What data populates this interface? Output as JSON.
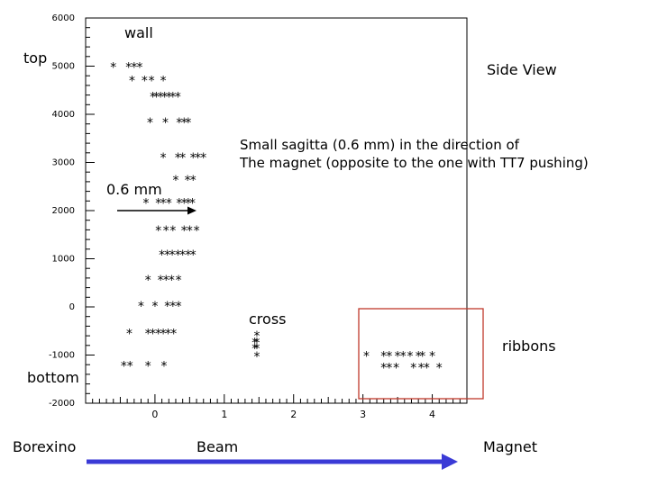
{
  "chart_data": {
    "type": "scatter",
    "title": "",
    "xlabel": "",
    "ylabel": "",
    "xlim": [
      -1,
      4.5
    ],
    "ylim": [
      -2000,
      6000
    ],
    "x_ticks": [
      {
        "value": 0,
        "label": "0"
      },
      {
        "value": 1,
        "label": "1"
      },
      {
        "value": 2,
        "label": "2"
      },
      {
        "value": 3,
        "label": "3"
      },
      {
        "value": 4,
        "label": "4"
      }
    ],
    "y_ticks": [
      {
        "value": 6000,
        "label": "6000"
      },
      {
        "value": 5000,
        "label": "5000"
      },
      {
        "value": 4000,
        "label": "4000"
      },
      {
        "value": 3000,
        "label": "3000"
      },
      {
        "value": 2000,
        "label": "2000"
      },
      {
        "value": 1000,
        "label": "1000"
      },
      {
        "value": 0,
        "label": "0"
      },
      {
        "value": -1000,
        "label": "-1000"
      },
      {
        "value": -2000,
        "label": "-2000"
      }
    ],
    "marker": "*",
    "series": [
      {
        "points": [
          [
            -0.6,
            5000
          ],
          [
            -0.38,
            5000
          ],
          [
            -0.3,
            5000
          ],
          [
            -0.22,
            5000
          ],
          [
            -0.33,
            4720
          ],
          [
            -0.15,
            4720
          ],
          [
            -0.05,
            4720
          ],
          [
            0.12,
            4720
          ],
          [
            -0.03,
            4380
          ],
          [
            0.02,
            4380
          ],
          [
            0.08,
            4380
          ],
          [
            0.14,
            4380
          ],
          [
            0.2,
            4380
          ],
          [
            0.26,
            4380
          ],
          [
            0.33,
            4380
          ],
          [
            -0.07,
            3850
          ],
          [
            0.15,
            3850
          ],
          [
            0.35,
            3850
          ],
          [
            0.42,
            3850
          ],
          [
            0.48,
            3850
          ],
          [
            0.12,
            3120
          ],
          [
            0.33,
            3120
          ],
          [
            0.4,
            3120
          ],
          [
            0.55,
            3120
          ],
          [
            0.62,
            3120
          ],
          [
            0.7,
            3120
          ],
          [
            0.3,
            2650
          ],
          [
            0.47,
            2650
          ],
          [
            0.55,
            2650
          ],
          [
            -0.13,
            2180
          ],
          [
            0.05,
            2180
          ],
          [
            0.12,
            2180
          ],
          [
            0.2,
            2180
          ],
          [
            0.35,
            2180
          ],
          [
            0.42,
            2180
          ],
          [
            0.48,
            2180
          ],
          [
            0.54,
            2180
          ],
          [
            0.05,
            1610
          ],
          [
            0.16,
            1610
          ],
          [
            0.26,
            1610
          ],
          [
            0.42,
            1610
          ],
          [
            0.5,
            1610
          ],
          [
            0.6,
            1610
          ],
          [
            0.1,
            1100
          ],
          [
            0.18,
            1100
          ],
          [
            0.25,
            1100
          ],
          [
            0.33,
            1100
          ],
          [
            0.4,
            1100
          ],
          [
            0.48,
            1100
          ],
          [
            0.55,
            1100
          ],
          [
            -0.1,
            580
          ],
          [
            0.08,
            580
          ],
          [
            0.16,
            580
          ],
          [
            0.24,
            580
          ],
          [
            0.34,
            580
          ],
          [
            -0.2,
            40
          ],
          [
            0.0,
            40
          ],
          [
            0.18,
            40
          ],
          [
            0.26,
            40
          ],
          [
            0.34,
            40
          ],
          [
            -0.37,
            -530
          ],
          [
            -0.1,
            -530
          ],
          [
            -0.03,
            -530
          ],
          [
            0.05,
            -530
          ],
          [
            0.12,
            -530
          ],
          [
            0.19,
            -530
          ],
          [
            0.27,
            -530
          ],
          [
            -0.45,
            -1210
          ],
          [
            -0.36,
            -1210
          ],
          [
            -0.1,
            -1210
          ],
          [
            0.13,
            -1210
          ],
          [
            1.47,
            -580
          ],
          [
            1.44,
            -720
          ],
          [
            1.47,
            -720
          ],
          [
            1.44,
            -840
          ],
          [
            1.47,
            -840
          ],
          [
            1.47,
            -1010
          ],
          [
            3.05,
            -1000
          ],
          [
            3.3,
            -1000
          ],
          [
            3.38,
            -1000
          ],
          [
            3.5,
            -1000
          ],
          [
            3.58,
            -1000
          ],
          [
            3.68,
            -1000
          ],
          [
            3.8,
            -1000
          ],
          [
            3.86,
            -1000
          ],
          [
            4.0,
            -1000
          ],
          [
            3.3,
            -1240
          ],
          [
            3.38,
            -1240
          ],
          [
            3.48,
            -1240
          ],
          [
            3.73,
            -1240
          ],
          [
            3.84,
            -1240
          ],
          [
            3.92,
            -1240
          ],
          [
            4.1,
            -1240
          ]
        ]
      }
    ],
    "annotations": {
      "wall": "wall",
      "top": "top",
      "bottom": "bottom",
      "side_view": "Side View",
      "sagitta_line1": "Small sagitta (0.6 mm) in the direction of",
      "sagitta_line2": "The magnet (opposite to the one with TT7 pushing)",
      "sagitta_value": "0.6 mm",
      "cross": "cross",
      "ribbons": "ribbons",
      "borexino": "Borexino",
      "beam": "Beam",
      "magnet": "Magnet"
    },
    "colors": {
      "ribbons_box": "#c0392b",
      "beam_arrow": "#3a3ad6",
      "markers": "#000000"
    }
  }
}
